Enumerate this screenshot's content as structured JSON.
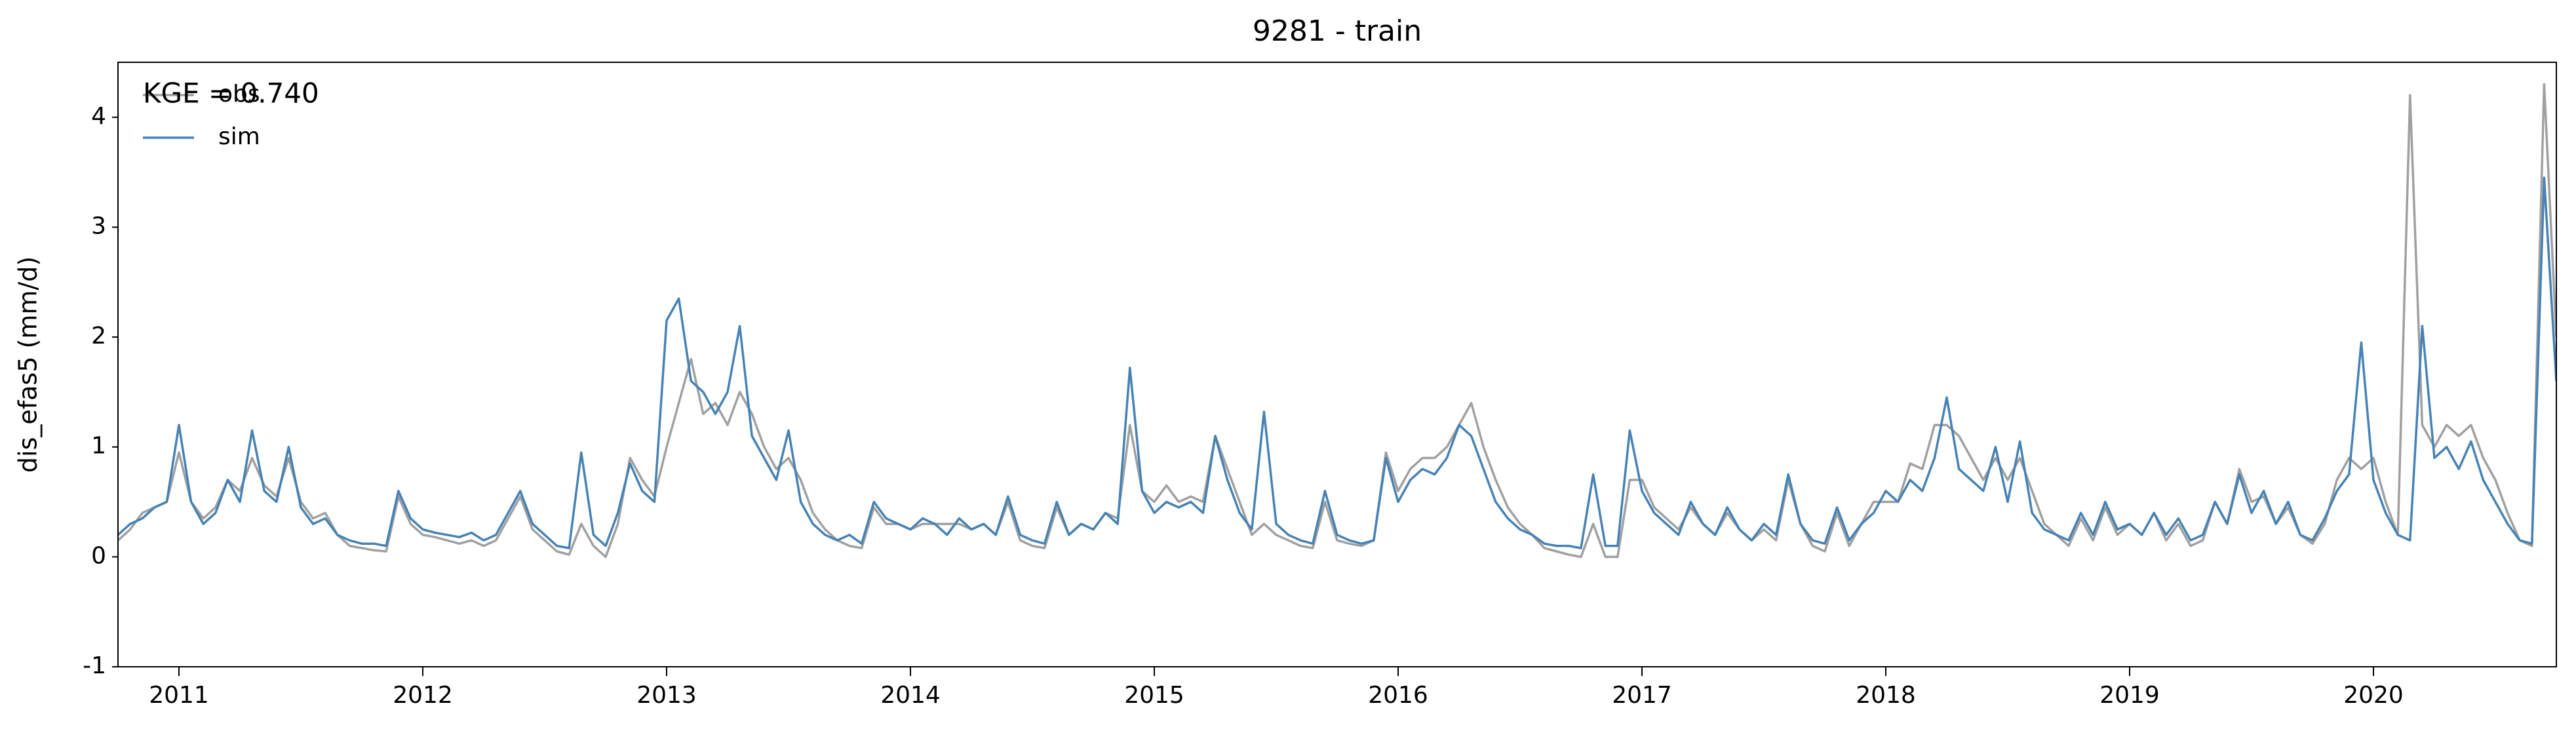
{
  "chart_data": {
    "type": "line",
    "title": "9281 - train",
    "y_label": "dis_efas5 (mm/d)",
    "annotation": "KGE = 0.740",
    "legend": "upper left",
    "x": [
      2010.75,
      2010.8,
      2010.85,
      2010.9,
      2010.95,
      2011,
      2011.05,
      2011.1,
      2011.15,
      2011.2,
      2011.25,
      2011.3,
      2011.35,
      2011.4,
      2011.45,
      2011.5,
      2011.55,
      2011.6,
      2011.65,
      2011.7,
      2011.75,
      2011.8,
      2011.85,
      2011.9,
      2011.95,
      2012,
      2012.05,
      2012.1,
      2012.15,
      2012.2,
      2012.25,
      2012.3,
      2012.35,
      2012.4,
      2012.45,
      2012.5,
      2012.55,
      2012.6,
      2012.65,
      2012.7,
      2012.75,
      2012.8,
      2012.85,
      2012.9,
      2012.95,
      2013,
      2013.05,
      2013.1,
      2013.15,
      2013.2,
      2013.25,
      2013.3,
      2013.35,
      2013.4,
      2013.45,
      2013.5,
      2013.55,
      2013.6,
      2013.65,
      2013.7,
      2013.75,
      2013.8,
      2013.85,
      2013.9,
      2013.95,
      2014,
      2014.05,
      2014.1,
      2014.15,
      2014.2,
      2014.25,
      2014.3,
      2014.35,
      2014.4,
      2014.45,
      2014.5,
      2014.55,
      2014.6,
      2014.65,
      2014.7,
      2014.75,
      2014.8,
      2014.85,
      2014.9,
      2014.95,
      2015,
      2015.05,
      2015.1,
      2015.15,
      2015.2,
      2015.25,
      2015.3,
      2015.35,
      2015.4,
      2015.45,
      2015.5,
      2015.55,
      2015.6,
      2015.65,
      2015.7,
      2015.75,
      2015.8,
      2015.85,
      2015.9,
      2015.95,
      2016,
      2016.05,
      2016.1,
      2016.15,
      2016.2,
      2016.25,
      2016.3,
      2016.35,
      2016.4,
      2016.45,
      2016.5,
      2016.55,
      2016.6,
      2016.65,
      2016.7,
      2016.75,
      2016.8,
      2016.85,
      2016.9,
      2016.95,
      2017,
      2017.05,
      2017.1,
      2017.15,
      2017.2,
      2017.25,
      2017.3,
      2017.35,
      2017.4,
      2017.45,
      2017.5,
      2017.55,
      2017.6,
      2017.65,
      2017.7,
      2017.75,
      2017.8,
      2017.85,
      2017.9,
      2017.95,
      2018,
      2018.05,
      2018.1,
      2018.15,
      2018.2,
      2018.25,
      2018.3,
      2018.35,
      2018.4,
      2018.45,
      2018.5,
      2018.55,
      2018.6,
      2018.65,
      2018.7,
      2018.75,
      2018.8,
      2018.85,
      2018.9,
      2018.95,
      2019,
      2019.05,
      2019.1,
      2019.15,
      2019.2,
      2019.25,
      2019.3,
      2019.35,
      2019.4,
      2019.45,
      2019.5,
      2019.55,
      2019.6,
      2019.65,
      2019.7,
      2019.75,
      2019.8,
      2019.85,
      2019.9,
      2019.95,
      2020,
      2020.05,
      2020.1,
      2020.15,
      2020.2,
      2020.25,
      2020.3,
      2020.35,
      2020.4,
      2020.45,
      2020.5,
      2020.55,
      2020.6,
      2020.65,
      2020.7,
      2020.75
    ],
    "series": [
      {
        "name": "obs",
        "color": "#a0a0a0",
        "values": [
          0.15,
          0.25,
          0.4,
          0.45,
          0.5,
          0.95,
          0.5,
          0.35,
          0.45,
          0.7,
          0.6,
          0.9,
          0.65,
          0.55,
          0.9,
          0.5,
          0.35,
          0.4,
          0.2,
          0.1,
          0.08,
          0.06,
          0.05,
          0.55,
          0.3,
          0.2,
          0.18,
          0.15,
          0.12,
          0.15,
          0.1,
          0.15,
          0.35,
          0.55,
          0.25,
          0.15,
          0.05,
          0.02,
          0.3,
          0.1,
          0,
          0.3,
          0.9,
          0.7,
          0.55,
          1.0,
          1.4,
          1.8,
          1.3,
          1.4,
          1.2,
          1.5,
          1.3,
          1.0,
          0.8,
          0.9,
          0.7,
          0.4,
          0.25,
          0.15,
          0.1,
          0.08,
          0.45,
          0.3,
          0.3,
          0.25,
          0.3,
          0.3,
          0.3,
          0.3,
          0.25,
          0.3,
          0.2,
          0.5,
          0.15,
          0.1,
          0.08,
          0.45,
          0.2,
          0.3,
          0.25,
          0.4,
          0.35,
          1.2,
          0.6,
          0.5,
          0.65,
          0.5,
          0.55,
          0.5,
          1.1,
          0.8,
          0.5,
          0.2,
          0.3,
          0.2,
          0.15,
          0.1,
          0.08,
          0.5,
          0.15,
          0.12,
          0.1,
          0.15,
          0.95,
          0.6,
          0.8,
          0.9,
          0.9,
          1.0,
          1.2,
          1.4,
          1.0,
          0.7,
          0.45,
          0.3,
          0.2,
          0.08,
          0.05,
          0.02,
          0,
          0.3,
          0,
          0,
          0.7,
          0.7,
          0.45,
          0.35,
          0.25,
          0.45,
          0.3,
          0.2,
          0.4,
          0.25,
          0.15,
          0.25,
          0.15,
          0.7,
          0.3,
          0.1,
          0.05,
          0.4,
          0.1,
          0.3,
          0.5,
          0.5,
          0.5,
          0.85,
          0.8,
          1.2,
          1.2,
          1.1,
          0.9,
          0.7,
          0.9,
          0.7,
          0.9,
          0.6,
          0.3,
          0.2,
          0.1,
          0.35,
          0.15,
          0.45,
          0.2,
          0.3,
          0.2,
          0.4,
          0.15,
          0.3,
          0.1,
          0.15,
          0.5,
          0.3,
          0.8,
          0.5,
          0.55,
          0.3,
          0.45,
          0.2,
          0.12,
          0.3,
          0.7,
          0.9,
          0.8,
          0.9,
          0.5,
          0.2,
          4.2,
          1.2,
          1.0,
          1.2,
          1.1,
          1.2,
          0.9,
          0.7,
          0.4,
          0.15,
          0.1,
          4.3,
          2.0
        ]
      },
      {
        "name": "sim",
        "color": "#4682b4",
        "values": [
          0.2,
          0.3,
          0.35,
          0.45,
          0.5,
          1.2,
          0.5,
          0.3,
          0.4,
          0.7,
          0.5,
          1.15,
          0.6,
          0.5,
          1.0,
          0.45,
          0.3,
          0.35,
          0.2,
          0.15,
          0.12,
          0.12,
          0.1,
          0.6,
          0.35,
          0.25,
          0.22,
          0.2,
          0.18,
          0.22,
          0.15,
          0.2,
          0.4,
          0.6,
          0.3,
          0.2,
          0.1,
          0.08,
          0.95,
          0.2,
          0.1,
          0.4,
          0.85,
          0.6,
          0.5,
          2.15,
          2.35,
          1.6,
          1.5,
          1.3,
          1.5,
          2.1,
          1.1,
          0.9,
          0.7,
          1.15,
          0.5,
          0.3,
          0.2,
          0.15,
          0.2,
          0.12,
          0.5,
          0.35,
          0.3,
          0.25,
          0.35,
          0.3,
          0.2,
          0.35,
          0.25,
          0.3,
          0.2,
          0.55,
          0.2,
          0.15,
          0.12,
          0.5,
          0.2,
          0.3,
          0.25,
          0.4,
          0.3,
          1.72,
          0.6,
          0.4,
          0.5,
          0.45,
          0.5,
          0.4,
          1.1,
          0.7,
          0.4,
          0.25,
          1.32,
          0.3,
          0.2,
          0.15,
          0.12,
          0.6,
          0.2,
          0.15,
          0.12,
          0.15,
          0.9,
          0.5,
          0.7,
          0.8,
          0.75,
          0.9,
          1.2,
          1.1,
          0.8,
          0.5,
          0.35,
          0.25,
          0.2,
          0.12,
          0.1,
          0.1,
          0.08,
          0.75,
          0.1,
          0.1,
          1.15,
          0.6,
          0.4,
          0.3,
          0.2,
          0.5,
          0.3,
          0.2,
          0.45,
          0.25,
          0.15,
          0.3,
          0.2,
          0.75,
          0.3,
          0.15,
          0.12,
          0.45,
          0.15,
          0.3,
          0.4,
          0.6,
          0.5,
          0.7,
          0.6,
          0.9,
          1.45,
          0.8,
          0.7,
          0.6,
          1.0,
          0.5,
          1.05,
          0.4,
          0.25,
          0.2,
          0.15,
          0.4,
          0.2,
          0.5,
          0.25,
          0.3,
          0.2,
          0.4,
          0.2,
          0.35,
          0.15,
          0.2,
          0.5,
          0.3,
          0.75,
          0.4,
          0.6,
          0.3,
          0.5,
          0.2,
          0.15,
          0.35,
          0.6,
          0.75,
          1.95,
          0.7,
          0.4,
          0.2,
          0.15,
          2.1,
          0.9,
          1.0,
          0.8,
          1.05,
          0.7,
          0.5,
          0.3,
          0.15,
          0.12,
          3.45,
          1.6
        ]
      }
    ],
    "xlim": [
      2010.75,
      2020.75
    ],
    "xticks": [
      2011,
      2012,
      2013,
      2014,
      2015,
      2016,
      2017,
      2018,
      2019,
      2020
    ],
    "ylim": [
      -1,
      4.5
    ],
    "yticks": [
      -1,
      0,
      1,
      2,
      3,
      4
    ]
  }
}
